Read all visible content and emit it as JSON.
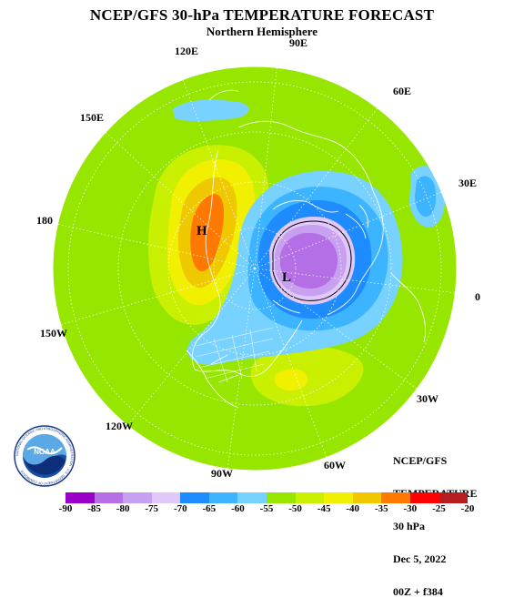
{
  "title": "NCEP/GFS 30-hPa TEMPERATURE FORECAST",
  "subtitle": "Northern Hemisphere",
  "longitude_labels": {
    "e90": "90E",
    "e120": "120E",
    "e60": "60E",
    "e150": "150E",
    "e30": "30E",
    "w180": "180",
    "z0": "0",
    "w150": "150W",
    "w30": "30W",
    "w120": "120W",
    "w90": "90W",
    "w60": "60W"
  },
  "centers": {
    "high": "H",
    "low": "L"
  },
  "info_block": {
    "line1": "NCEP/GFS",
    "line2": "TEMPERATURE",
    "line3": "30 hPa",
    "line4": "Dec 5, 2022",
    "line5": "00Z + f384"
  },
  "logo": {
    "text": "NOAA",
    "ring_text": "NATIONAL OCEANIC AND ATMOSPHERIC ADMINISTRATION · U.S. DEPARTMENT OF COMMERCE"
  },
  "colorbar": {
    "ticks": [
      "-90",
      "-85",
      "-80",
      "-75",
      "-70",
      "-65",
      "-60",
      "-55",
      "-50",
      "-45",
      "-40",
      "-35",
      "-30",
      "-25",
      "-20"
    ],
    "colors": [
      "#9a00c8",
      "#b46ee6",
      "#c8a0f0",
      "#e1c8fa",
      "#1e8cff",
      "#3cb4ff",
      "#78d2ff",
      "#96e600",
      "#c8f000",
      "#f0f000",
      "#f0c800",
      "#ff7800",
      "#ff0000",
      "#b41e1e",
      "#646464"
    ]
  }
}
